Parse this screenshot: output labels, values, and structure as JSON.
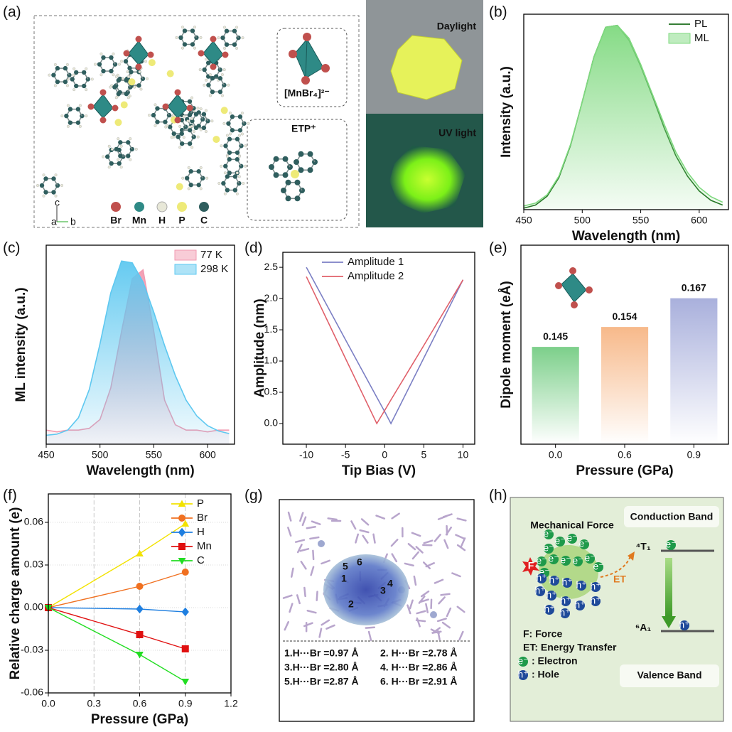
{
  "panel_labels": [
    "(a)",
    "(b)",
    "(c)",
    "(d)",
    "(e)",
    "(f)",
    "(g)",
    "(h)"
  ],
  "panel_a": {
    "legend": [
      "Br",
      "Mn",
      "H",
      "P",
      "C"
    ],
    "axes": [
      "c",
      "a",
      "b"
    ],
    "inset_labels": [
      "[MnBr₄]²⁻",
      "ETP⁺"
    ],
    "photo_labels": [
      "Daylight",
      "UV light"
    ]
  },
  "chart_data": [
    {
      "type": "line",
      "xlabel": "Wavelength (nm)",
      "ylabel": "Intensity (a.u.)",
      "x": [
        450,
        460,
        470,
        480,
        490,
        500,
        510,
        520,
        530,
        540,
        550,
        560,
        570,
        580,
        590,
        600,
        610,
        620
      ],
      "xlim": [
        450,
        625
      ],
      "xticks": [
        450,
        500,
        550,
        600
      ],
      "ylim": [
        0,
        1.05
      ],
      "legend": "upper right",
      "series": [
        {
          "name": "PL",
          "color": "#1a6b1a",
          "fill": false,
          "values": [
            0.008,
            0.025,
            0.072,
            0.172,
            0.345,
            0.58,
            0.82,
            0.98,
            0.99,
            0.91,
            0.77,
            0.61,
            0.44,
            0.29,
            0.18,
            0.1,
            0.05,
            0.025
          ]
        },
        {
          "name": "ML",
          "color": "#7fd97f",
          "fill": true,
          "values": [
            0.02,
            0.035,
            0.08,
            0.18,
            0.35,
            0.58,
            0.82,
            0.98,
            0.99,
            0.92,
            0.78,
            0.62,
            0.46,
            0.31,
            0.2,
            0.12,
            0.07,
            0.04
          ]
        }
      ]
    },
    {
      "type": "line",
      "xlabel": "Wavelength (nm)",
      "ylabel": "ML intensity (a.u.)",
      "x": [
        450,
        460,
        470,
        480,
        490,
        500,
        510,
        520,
        530,
        540,
        550,
        560,
        570,
        580,
        590,
        600,
        610,
        620
      ],
      "xlim": [
        450,
        625
      ],
      "xticks": [
        450,
        500,
        550,
        600
      ],
      "ylim": [
        -0.05,
        1.08
      ],
      "legend": "upper right",
      "series": [
        {
          "name": "77 K",
          "color": "#f29ab0",
          "fill": true,
          "values": [
            0.03,
            0.02,
            0.03,
            0.03,
            0.04,
            0.09,
            0.27,
            0.59,
            0.89,
            0.94,
            0.59,
            0.2,
            0.06,
            0.03,
            0.03,
            0.02,
            0.03,
            0.03
          ]
        },
        {
          "name": "298 K",
          "color": "#5ec8f0",
          "fill": true,
          "values": [
            0.001,
            0.007,
            0.03,
            0.1,
            0.26,
            0.52,
            0.81,
            0.99,
            0.98,
            0.87,
            0.7,
            0.51,
            0.34,
            0.2,
            0.11,
            0.055,
            0.025,
            0.01
          ]
        }
      ]
    },
    {
      "type": "line",
      "xlabel": "Tip Bias (V)",
      "ylabel": "Amplitude (nm)",
      "x": [
        -10,
        -5,
        -1,
        0,
        0.8,
        5,
        10
      ],
      "xlim": [
        -13,
        11.5
      ],
      "xticks": [
        -10,
        -5,
        0,
        5,
        10
      ],
      "ylim": [
        -0.33,
        2.74
      ],
      "yticks": [
        {
          "value": 0,
          "label": "0.0"
        },
        0.5,
        {
          "value": 1,
          "label": "1.0"
        },
        1.5,
        {
          "value": 2,
          "label": "2.0"
        },
        2.5
      ],
      "legend": "upper center",
      "series": [
        {
          "name": "Amplitude 1",
          "color": "#7b7fc4",
          "fill": false,
          "values": [
            2.5,
            1.34,
            0.42,
            0.19,
            0,
            1.05,
            2.3
          ]
        },
        {
          "name": "Amplitude 2",
          "color": "#e0606a",
          "fill": false,
          "values": [
            2.35,
            1.04,
            0,
            0.21,
            0.38,
            1.25,
            2.3
          ]
        }
      ]
    },
    {
      "type": "bar",
      "xlabel": "Pressure (GPa)",
      "ylabel": "Dipole moment (eÅ)",
      "categories": [
        "0.0",
        "0.6",
        "0.9"
      ],
      "values": [
        0.145,
        0.154,
        0.167
      ],
      "colors": [
        "#7ccf8a",
        "#f7b98a",
        "#a9b0dc"
      ],
      "ylim": [
        0.101,
        0.191
      ]
    },
    {
      "type": "line",
      "xlabel": "Pressure (GPa)",
      "ylabel": "Relative charge amount (e)",
      "x": [
        0,
        0.6,
        0.9
      ],
      "xlim": [
        0,
        1.2
      ],
      "xticks": [
        {
          "value": 0,
          "label": "0.0"
        },
        0.3,
        0.6,
        0.9,
        1.2
      ],
      "ylim": [
        -0.06,
        0.08
      ],
      "yticks": [
        -0.06,
        -0.03,
        {
          "value": 0,
          "label": "0.00"
        },
        0.03,
        0.06
      ],
      "grid": true,
      "legend": "upper right",
      "series": [
        {
          "name": "P",
          "color": "#f2e200",
          "marker": "triangle-up",
          "values": [
            0,
            0.038,
            0.059
          ]
        },
        {
          "name": "Br",
          "color": "#f07020",
          "marker": "circle",
          "values": [
            0,
            0.015,
            0.025
          ]
        },
        {
          "name": "H",
          "color": "#1f7fe0",
          "marker": "diamond",
          "values": [
            0,
            -0.001,
            -0.003
          ]
        },
        {
          "name": "Mn",
          "color": "#e01010",
          "marker": "square",
          "values": [
            0,
            -0.019,
            -0.029
          ]
        },
        {
          "name": "C",
          "color": "#22dd22",
          "marker": "triangle-down",
          "values": [
            0,
            -0.033,
            -0.052
          ]
        }
      ]
    }
  ],
  "panel_g": {
    "sites": [
      "1",
      "2",
      "3",
      "4",
      "5",
      "6"
    ],
    "distances": [
      "1.H···Br =0.97 Å",
      "2. H···Br =2.78 Å",
      "3.H···Br =2.80 Å",
      "4. H···Br =2.86 Å",
      "5.H···Br =2.87 Å",
      "6. H···Br =2.91 Å"
    ]
  },
  "panel_h": {
    "mechanical_force": "Mechanical Force",
    "conduction_band": "Conduction Band",
    "valence_band": "Valence Band",
    "upper_level": "⁴T₁",
    "lower_level": "⁶A₁",
    "transfer": "ET",
    "force_symbol": "F",
    "electron": "e⁻",
    "hole": "h⁺",
    "key": [
      "F: Force",
      "ET: Energy Transfer",
      ": Electron",
      ": Hole"
    ]
  }
}
